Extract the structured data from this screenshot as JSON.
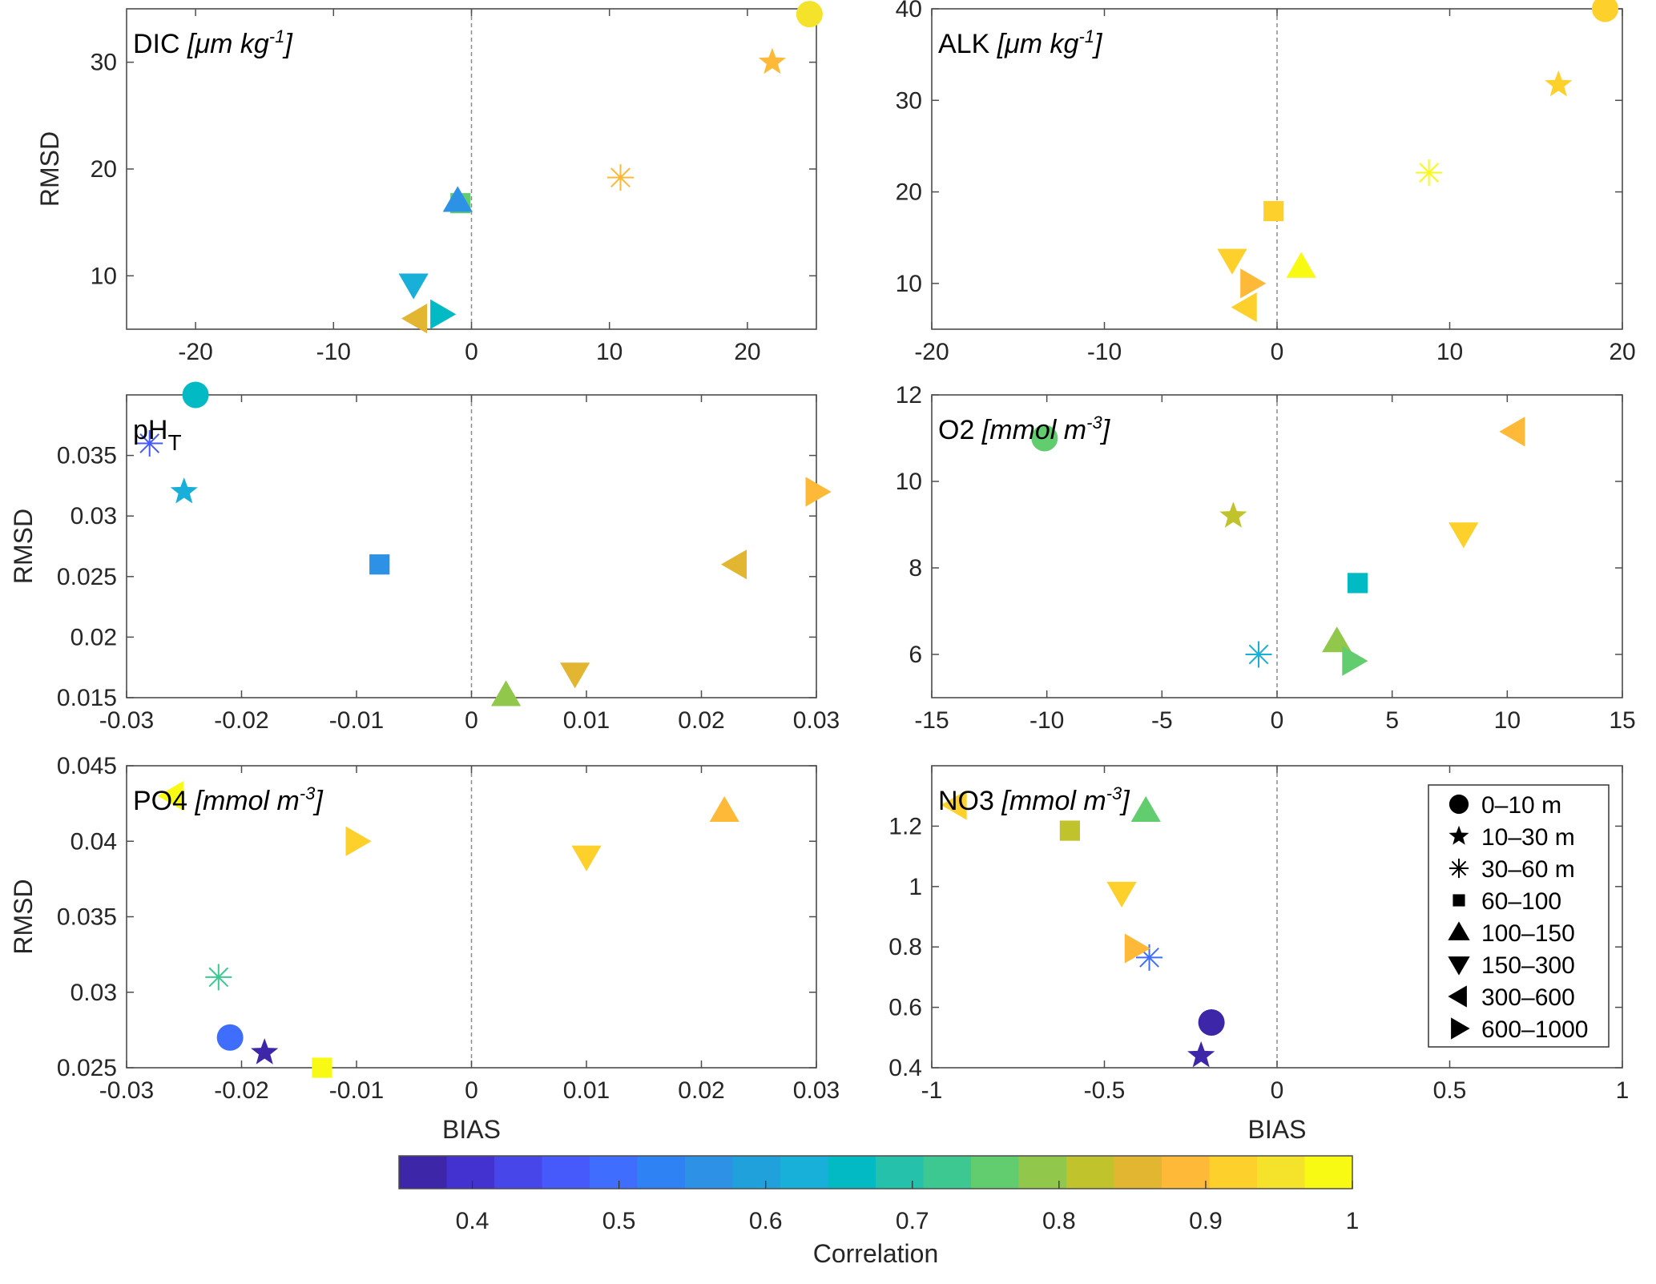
{
  "chart_data": {
    "type": "scatter",
    "description": "Six scatter panels of RMSD vs BIAS, marker shape = depth layer, marker color = correlation",
    "marker_legend": [
      {
        "shape": "circle",
        "label": "0–10 m"
      },
      {
        "shape": "star",
        "label": "10–30 m"
      },
      {
        "shape": "asterisk",
        "label": "30–60 m"
      },
      {
        "shape": "square",
        "label": "60–100"
      },
      {
        "shape": "triangle-up",
        "label": "100–150"
      },
      {
        "shape": "triangle-down",
        "label": "150–300"
      },
      {
        "shape": "triangle-left",
        "label": "300–600"
      },
      {
        "shape": "triangle-right",
        "label": "600–1000"
      }
    ],
    "legend_position": "inside NO3 panel, right",
    "colorbar": {
      "label": "Correlation",
      "range": [
        0.35,
        1.0
      ],
      "ticks": [
        "0.4",
        "0.5",
        "0.6",
        "0.7",
        "0.8",
        "0.9",
        "1"
      ],
      "tick_values": [
        0.4,
        0.5,
        0.6,
        0.7,
        0.8,
        0.9,
        1.0
      ],
      "colors": [
        "#3e26a8",
        "#4332cf",
        "#4746e8",
        "#4659fb",
        "#3f6efe",
        "#2f82f4",
        "#2d92e5",
        "#20a1dc",
        "#18afd9",
        "#02bac4",
        "#25c1ab",
        "#3dc892",
        "#62cd6e",
        "#91c84c",
        "#c1c32c",
        "#e2b630",
        "#feb939",
        "#fdd02c",
        "#f5e22a",
        "#f9fa14"
      ],
      "orientation": "horizontal"
    },
    "panels": [
      {
        "id": "dic",
        "title": "DIC",
        "units": "[μm kg",
        "units_sup": "-1",
        "units_end": "]",
        "xlim": [
          -25,
          25
        ],
        "ylim": [
          5,
          35
        ],
        "xticks": [
          -20,
          -10,
          0,
          10,
          20
        ],
        "yticks": [
          10,
          20,
          30
        ],
        "xlabel": "",
        "ylabel": "RMSD",
        "points": [
          {
            "depth": "0–10 m",
            "shape": "circle",
            "bias": 24.5,
            "rmsd": 34.5,
            "corr": 0.95
          },
          {
            "depth": "10–30 m",
            "shape": "star",
            "bias": 21.8,
            "rmsd": 30.0,
            "corr": 0.9
          },
          {
            "depth": "30–60 m",
            "shape": "asterisk",
            "bias": 10.8,
            "rmsd": 19.2,
            "corr": 0.9
          },
          {
            "depth": "60–100",
            "shape": "square",
            "bias": -0.8,
            "rmsd": 16.8,
            "corr": 0.76
          },
          {
            "depth": "100–150",
            "shape": "triangle-up",
            "bias": -1.0,
            "rmsd": 17.0,
            "corr": 0.55
          },
          {
            "depth": "150–300",
            "shape": "triangle-down",
            "bias": -4.2,
            "rmsd": 9.2,
            "corr": 0.62
          },
          {
            "depth": "300–600",
            "shape": "triangle-left",
            "bias": -4.0,
            "rmsd": 6.0,
            "corr": 0.85
          },
          {
            "depth": "600–1000",
            "shape": "triangle-right",
            "bias": -2.2,
            "rmsd": 6.4,
            "corr": 0.66
          }
        ]
      },
      {
        "id": "alk",
        "title": "ALK",
        "units": "[μm kg",
        "units_sup": "-1",
        "units_end": "]",
        "xlim": [
          -20,
          20
        ],
        "ylim": [
          5,
          40
        ],
        "xticks": [
          -20,
          -10,
          0,
          10,
          20
        ],
        "yticks": [
          10,
          20,
          30,
          40
        ],
        "xlabel": "",
        "ylabel": "",
        "points": [
          {
            "depth": "0–10 m",
            "shape": "circle",
            "bias": 19.0,
            "rmsd": 40.0,
            "corr": 0.93
          },
          {
            "depth": "10–30 m",
            "shape": "star",
            "bias": 16.3,
            "rmsd": 31.7,
            "corr": 0.93
          },
          {
            "depth": "30–60 m",
            "shape": "asterisk",
            "bias": 8.8,
            "rmsd": 22.1,
            "corr": 0.97
          },
          {
            "depth": "60–100",
            "shape": "square",
            "bias": -0.2,
            "rmsd": 17.9,
            "corr": 0.93
          },
          {
            "depth": "100–150",
            "shape": "triangle-up",
            "bias": 1.4,
            "rmsd": 11.8,
            "corr": 0.97
          },
          {
            "depth": "150–300",
            "shape": "triangle-down",
            "bias": -2.6,
            "rmsd": 12.6,
            "corr": 0.93
          },
          {
            "depth": "300–600",
            "shape": "triangle-left",
            "bias": -1.8,
            "rmsd": 7.4,
            "corr": 0.93
          },
          {
            "depth": "600–1000",
            "shape": "triangle-right",
            "bias": -1.5,
            "rmsd": 10.0,
            "corr": 0.9
          }
        ]
      },
      {
        "id": "ph",
        "title": "pH",
        "title_sub": "T",
        "units": "",
        "units_sup": "",
        "units_end": "",
        "xlim": [
          -0.03,
          0.03
        ],
        "ylim": [
          0.015,
          0.04
        ],
        "xticks": [
          -0.03,
          -0.02,
          -0.01,
          0,
          0.01,
          0.02,
          0.03
        ],
        "xtick_labels": [
          "-0.03",
          "-0.02",
          "-0.01",
          "0",
          "0.01",
          "0.02",
          "0.03"
        ],
        "yticks": [
          0.015,
          0.02,
          0.025,
          0.03,
          0.035
        ],
        "ytick_labels": [
          "0.015",
          "0.02",
          "0.025",
          "0.03",
          "0.035"
        ],
        "xlabel": "",
        "ylabel": "RMSD",
        "points": [
          {
            "depth": "0–10 m",
            "shape": "circle",
            "bias": -0.024,
            "rmsd": 0.04,
            "corr": 0.66
          },
          {
            "depth": "10–30 m",
            "shape": "star",
            "bias": -0.025,
            "rmsd": 0.032,
            "corr": 0.62
          },
          {
            "depth": "30–60 m",
            "shape": "asterisk",
            "bias": -0.028,
            "rmsd": 0.036,
            "corr": 0.45
          },
          {
            "depth": "60–100",
            "shape": "square",
            "bias": -0.008,
            "rmsd": 0.026,
            "corr": 0.55
          },
          {
            "depth": "100–150",
            "shape": "triangle-up",
            "bias": 0.003,
            "rmsd": 0.0152,
            "corr": 0.79
          },
          {
            "depth": "150–300",
            "shape": "triangle-down",
            "bias": 0.009,
            "rmsd": 0.017,
            "corr": 0.85
          },
          {
            "depth": "300–600",
            "shape": "triangle-left",
            "bias": 0.023,
            "rmsd": 0.026,
            "corr": 0.85
          },
          {
            "depth": "600–1000",
            "shape": "triangle-right",
            "bias": 0.03,
            "rmsd": 0.032,
            "corr": 0.9
          }
        ]
      },
      {
        "id": "o2",
        "title": "O2",
        "units": "[mmol m",
        "units_sup": "-3",
        "units_end": "]",
        "xlim": [
          -15,
          15
        ],
        "ylim": [
          5,
          12
        ],
        "xticks": [
          -15,
          -10,
          -5,
          0,
          5,
          10,
          15
        ],
        "yticks": [
          6,
          8,
          10,
          12
        ],
        "xlabel": "",
        "ylabel": "",
        "points": [
          {
            "depth": "0–10 m",
            "shape": "circle",
            "bias": -10.1,
            "rmsd": 11.0,
            "corr": 0.76
          },
          {
            "depth": "10–30 m",
            "shape": "star",
            "bias": -1.9,
            "rmsd": 9.2,
            "corr": 0.82
          },
          {
            "depth": "30–60 m",
            "shape": "asterisk",
            "bias": -0.8,
            "rmsd": 6.0,
            "corr": 0.64
          },
          {
            "depth": "60–100",
            "shape": "square",
            "bias": 3.5,
            "rmsd": 7.65,
            "corr": 0.66
          },
          {
            "depth": "100–150",
            "shape": "triangle-up",
            "bias": 2.6,
            "rmsd": 6.3,
            "corr": 0.79
          },
          {
            "depth": "150–300",
            "shape": "triangle-down",
            "bias": 8.1,
            "rmsd": 8.8,
            "corr": 0.93
          },
          {
            "depth": "300–600",
            "shape": "triangle-left",
            "bias": 10.3,
            "rmsd": 11.15,
            "corr": 0.9
          },
          {
            "depth": "600–1000",
            "shape": "triangle-right",
            "bias": 3.3,
            "rmsd": 5.85,
            "corr": 0.76
          }
        ]
      },
      {
        "id": "po4",
        "title": "PO4",
        "units": "[mmol m",
        "units_sup": "-3",
        "units_end": "]",
        "xlim": [
          -0.03,
          0.03
        ],
        "ylim": [
          0.025,
          0.045
        ],
        "xticks": [
          -0.03,
          -0.02,
          -0.01,
          0,
          0.01,
          0.02,
          0.03
        ],
        "xtick_labels": [
          "-0.03",
          "-0.02",
          "-0.01",
          "0",
          "0.01",
          "0.02",
          "0.03"
        ],
        "yticks": [
          0.025,
          0.03,
          0.035,
          0.04,
          0.045
        ],
        "ytick_labels": [
          "0.025",
          "0.03",
          "0.035",
          "0.04",
          "0.045"
        ],
        "xlabel": "BIAS",
        "ylabel": "RMSD",
        "points": [
          {
            "depth": "0–10 m",
            "shape": "circle",
            "bias": -0.021,
            "rmsd": 0.027,
            "corr": 0.48
          },
          {
            "depth": "10–30 m",
            "shape": "star",
            "bias": -0.018,
            "rmsd": 0.026,
            "corr": 0.38
          },
          {
            "depth": "30–60 m",
            "shape": "asterisk",
            "bias": -0.022,
            "rmsd": 0.031,
            "corr": 0.72
          },
          {
            "depth": "60–100",
            "shape": "square",
            "bias": -0.013,
            "rmsd": 0.025,
            "corr": 0.97
          },
          {
            "depth": "100–150",
            "shape": "triangle-up",
            "bias": 0.022,
            "rmsd": 0.042,
            "corr": 0.9
          },
          {
            "depth": "150–300",
            "shape": "triangle-down",
            "bias": 0.01,
            "rmsd": 0.039,
            "corr": 0.93
          },
          {
            "depth": "300–600",
            "shape": "triangle-left",
            "bias": -0.026,
            "rmsd": 0.043,
            "corr": 0.99
          },
          {
            "depth": "600–1000",
            "shape": "triangle-right",
            "bias": -0.01,
            "rmsd": 0.04,
            "corr": 0.93
          }
        ]
      },
      {
        "id": "no3",
        "title": "NO3",
        "units": "[mmol m",
        "units_sup": "-3",
        "units_end": "]",
        "xlim": [
          -1,
          1
        ],
        "ylim": [
          0.4,
          1.4
        ],
        "xticks": [
          -1,
          -0.5,
          0,
          0.5,
          1
        ],
        "xtick_labels": [
          "-1",
          "-0.5",
          "0",
          "0.5",
          "1"
        ],
        "yticks": [
          0.4,
          0.6,
          0.8,
          1.0,
          1.2
        ],
        "ytick_labels": [
          "0.4",
          "0.6",
          "0.8",
          "1",
          "1.2"
        ],
        "xlabel": "BIAS",
        "ylabel": "",
        "points": [
          {
            "depth": "0–10 m",
            "shape": "circle",
            "bias": -0.19,
            "rmsd": 0.55,
            "corr": 0.36
          },
          {
            "depth": "10–30 m",
            "shape": "star",
            "bias": -0.22,
            "rmsd": 0.44,
            "corr": 0.38
          },
          {
            "depth": "30–60 m",
            "shape": "asterisk",
            "bias": -0.37,
            "rmsd": 0.765,
            "corr": 0.5
          },
          {
            "depth": "60–100",
            "shape": "square",
            "bias": -0.6,
            "rmsd": 1.185,
            "corr": 0.82
          },
          {
            "depth": "100–150",
            "shape": "triangle-up",
            "bias": -0.38,
            "rmsd": 1.25,
            "corr": 0.76
          },
          {
            "depth": "150–300",
            "shape": "triangle-down",
            "bias": -0.45,
            "rmsd": 0.98,
            "corr": 0.93
          },
          {
            "depth": "300–600",
            "shape": "triangle-left",
            "bias": -0.93,
            "rmsd": 1.27,
            "corr": 0.93
          },
          {
            "depth": "600–1000",
            "shape": "triangle-right",
            "bias": -0.41,
            "rmsd": 0.795,
            "corr": 0.9
          }
        ]
      }
    ]
  }
}
